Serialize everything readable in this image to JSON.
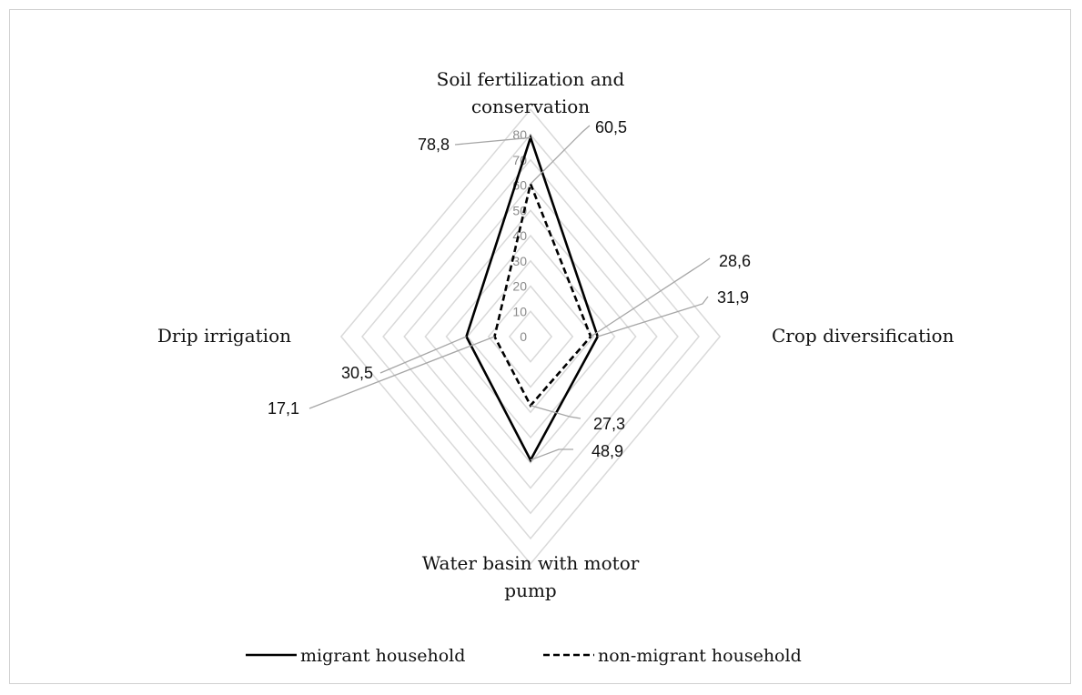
{
  "chart_data": {
    "type": "radar",
    "categories": [
      "Soil fertilization and conservation",
      "Crop diversification",
      "Water basin with motor pump",
      "Drip irrigation"
    ],
    "category_lines": [
      [
        "Soil fertilization and",
        "conservation"
      ],
      [
        "Crop diversification"
      ],
      [
        "Water basin with motor",
        "pump"
      ],
      [
        "Drip irrigation"
      ]
    ],
    "series": [
      {
        "name": "migrant household",
        "values": [
          78.8,
          31.9,
          48.9,
          30.5
        ],
        "labels": [
          "78,8",
          "31,9",
          "48,9",
          "30,5"
        ],
        "line_style": "solid",
        "color": "#000000"
      },
      {
        "name": "non-migrant household",
        "values": [
          60.5,
          28.6,
          27.3,
          17.1
        ],
        "labels": [
          "60,5",
          "28,6",
          "27,3",
          "17,1"
        ],
        "line_style": "dashed",
        "color": "#000000"
      }
    ],
    "radial_ticks": [
      "0",
      "10",
      "20",
      "30",
      "40",
      "50",
      "60",
      "70",
      "80"
    ],
    "rmax": 80,
    "grid_rings": 9,
    "grid": true,
    "grid_color": "#d9d9d9",
    "leader_color": "#a6a6a6",
    "legend_position": "bottom"
  }
}
